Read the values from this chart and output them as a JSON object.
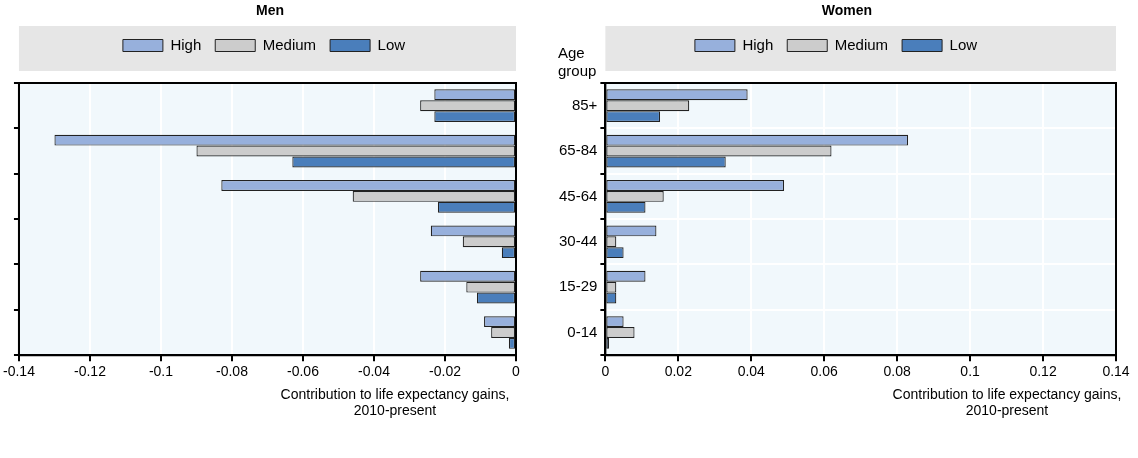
{
  "chart_data": [
    {
      "type": "bar",
      "title": "Men",
      "orientation": "horizontal",
      "categories": [
        null,
        null,
        null,
        null,
        null,
        null
      ],
      "series": [
        {
          "name": "High",
          "color": "#97b0dc",
          "values": [
            -0.023,
            -0.13,
            -0.083,
            -0.024,
            -0.027,
            -0.009
          ]
        },
        {
          "name": "Medium",
          "color": "#cccccc",
          "values": [
            -0.027,
            -0.09,
            -0.046,
            -0.015,
            -0.014,
            -0.007
          ]
        },
        {
          "name": "Low",
          "color": "#4a7ebb",
          "values": [
            -0.023,
            -0.063,
            -0.022,
            -0.004,
            -0.011,
            -0.002
          ]
        }
      ],
      "xlim": [
        -0.14,
        0
      ],
      "xticks": [
        -0.14,
        -0.12,
        -0.1,
        -0.08,
        -0.06,
        -0.04,
        -0.02,
        0
      ],
      "xlabel": "Contribution to life expectancy gains, 2010-present",
      "grid": "x",
      "legend": "top",
      "tick_labels": "x"
    },
    {
      "type": "bar",
      "title": "Women",
      "orientation": "horizontal",
      "categories": [
        "85+",
        "65-84",
        "45-64",
        "30-44",
        "15-29",
        "0-14"
      ],
      "series": [
        {
          "name": "High",
          "color": "#97b0dc",
          "values": [
            0.039,
            0.083,
            0.049,
            0.014,
            0.011,
            0.005
          ]
        },
        {
          "name": "Medium",
          "color": "#cccccc",
          "values": [
            0.023,
            0.062,
            0.016,
            0.003,
            0.003,
            0.008
          ]
        },
        {
          "name": "Low",
          "color": "#4a7ebb",
          "values": [
            0.015,
            0.033,
            0.011,
            0.005,
            0.003,
            0.001
          ]
        }
      ],
      "xlim": [
        0,
        0.14
      ],
      "xticks": [
        0,
        0.02,
        0.04,
        0.06,
        0.08,
        0.1,
        0.12,
        0.14
      ],
      "xlabel": "Contribution to life expectancy gains, 2010-present",
      "ylabel": "Age group",
      "grid": true,
      "legend": "top"
    }
  ]
}
